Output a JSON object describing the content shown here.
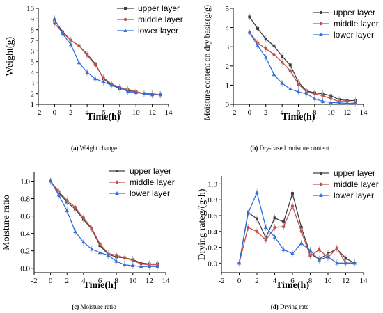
{
  "colors": {
    "upper": "#404040",
    "middle": "#c0504d",
    "lower": "#2f6fe0",
    "err": "#b4b4b4"
  },
  "chart_data": [
    {
      "type": "line",
      "caption_tag": "(a)",
      "caption_text": " Weight change",
      "xlabel": "Time(h)",
      "ylabel": "Weight(g)",
      "xlim": [
        -2,
        14
      ],
      "ylim": [
        1,
        10
      ],
      "xticks": [
        -2,
        0,
        2,
        4,
        6,
        8,
        10,
        12,
        14
      ],
      "yticks": [
        1,
        2,
        3,
        4,
        5,
        6,
        7,
        8,
        9,
        10
      ],
      "x": [
        0,
        1,
        2,
        3,
        4,
        5,
        6,
        7,
        8,
        9,
        10,
        11,
        12,
        13
      ],
      "legend": "top-right",
      "grid": false,
      "series": [
        {
          "name": "upper layer",
          "values": [
            8.9,
            7.8,
            7.0,
            6.5,
            5.7,
            4.8,
            3.4,
            2.8,
            2.5,
            2.3,
            2.2,
            2.0,
            1.9,
            1.9
          ]
        },
        {
          "name": "middle layer",
          "values": [
            8.6,
            7.7,
            7.0,
            6.5,
            5.6,
            4.7,
            3.5,
            2.9,
            2.6,
            2.4,
            2.2,
            2.0,
            2.0,
            1.9
          ]
        },
        {
          "name": "lower layer",
          "values": [
            9.0,
            7.6,
            6.6,
            4.9,
            4.0,
            3.4,
            3.1,
            2.8,
            2.6,
            2.2,
            2.1,
            2.0,
            1.9,
            1.9
          ]
        }
      ]
    },
    {
      "type": "line",
      "caption_tag": "(b)",
      "caption_text": " Dry-based moisture content",
      "xlabel": "Time(h)",
      "ylabel": "Moisture content on dry basis(g/g)",
      "xlim": [
        -2,
        14
      ],
      "ylim": [
        0,
        5
      ],
      "xticks": [
        -2,
        0,
        2,
        4,
        6,
        8,
        10,
        12,
        14
      ],
      "yticks": [
        0,
        1,
        2,
        3,
        4,
        5
      ],
      "x": [
        0,
        1,
        2,
        3,
        4,
        5,
        6,
        7,
        8,
        9,
        10,
        11,
        12,
        13
      ],
      "legend": "top-right",
      "grid": false,
      "series": [
        {
          "name": "upper layer",
          "values": [
            4.55,
            3.95,
            3.4,
            3.05,
            2.5,
            2.05,
            1.15,
            0.7,
            0.6,
            0.55,
            0.45,
            0.25,
            0.2,
            0.2
          ]
        },
        {
          "name": "middle layer",
          "values": [
            3.75,
            3.2,
            2.9,
            2.6,
            2.2,
            1.75,
            1.05,
            0.65,
            0.55,
            0.45,
            0.3,
            0.15,
            0.15,
            0.1
          ]
        },
        {
          "name": "lower layer",
          "values": [
            3.75,
            3.05,
            2.45,
            1.55,
            1.1,
            0.8,
            0.65,
            0.55,
            0.3,
            0.15,
            0.1,
            0.08,
            0.05,
            0.05
          ]
        }
      ]
    },
    {
      "type": "line",
      "caption_tag": "(c)",
      "caption_text": " Moisture ratio",
      "xlabel": "Time(h)",
      "ylabel": "Moisture ratio",
      "xlim": [
        -2,
        14
      ],
      "ylim": [
        -0.05,
        1.1
      ],
      "xticks": [
        -2,
        0,
        2,
        4,
        6,
        8,
        10,
        12,
        14
      ],
      "yticks": [
        0.0,
        0.2,
        0.4,
        0.6,
        0.8,
        1.0
      ],
      "x": [
        0,
        1,
        2,
        3,
        4,
        5,
        6,
        7,
        8,
        9,
        10,
        11,
        12,
        13
      ],
      "legend": "top-right",
      "grid": false,
      "series": [
        {
          "name": "upper layer",
          "values": [
            1.0,
            0.87,
            0.76,
            0.68,
            0.56,
            0.45,
            0.26,
            0.16,
            0.13,
            0.12,
            0.1,
            0.06,
            0.05,
            0.05
          ]
        },
        {
          "name": "middle layer",
          "values": [
            1.0,
            0.88,
            0.78,
            0.7,
            0.58,
            0.46,
            0.28,
            0.17,
            0.15,
            0.12,
            0.09,
            0.05,
            0.04,
            0.04
          ]
        },
        {
          "name": "lower layer",
          "values": [
            1.0,
            0.84,
            0.66,
            0.42,
            0.3,
            0.22,
            0.18,
            0.15,
            0.08,
            0.04,
            0.03,
            0.02,
            0.02,
            0.02
          ]
        }
      ]
    },
    {
      "type": "line",
      "caption_tag": "(d)",
      "caption_text": " Drying rate",
      "xlabel": "Time(h)",
      "ylabel": "Drying rateg/(g·h)",
      "xlim": [
        -2,
        14
      ],
      "ylim": [
        -0.12,
        1.1
      ],
      "xticks": [
        -2,
        0,
        2,
        4,
        6,
        8,
        10,
        12,
        14
      ],
      "yticks": [
        0.0,
        0.2,
        0.4,
        0.6,
        0.8,
        1.0
      ],
      "x": [
        0,
        1,
        2,
        3,
        4,
        5,
        6,
        7,
        8,
        9,
        10,
        11,
        12,
        13
      ],
      "legend": "top-right",
      "grid": false,
      "series": [
        {
          "name": "upper layer",
          "values": [
            0.0,
            0.64,
            0.56,
            0.32,
            0.57,
            0.52,
            0.88,
            0.45,
            0.12,
            0.05,
            0.12,
            0.18,
            0.06,
            0.0
          ]
        },
        {
          "name": "middle layer",
          "values": [
            0.0,
            0.45,
            0.4,
            0.29,
            0.45,
            0.46,
            0.72,
            0.4,
            0.09,
            0.17,
            0.07,
            0.19,
            0.0,
            0.0
          ]
        },
        {
          "name": "lower layer",
          "values": [
            0.0,
            0.63,
            0.89,
            0.45,
            0.33,
            0.17,
            0.12,
            0.25,
            0.16,
            0.04,
            0.08,
            0.0,
            0.0,
            0.0
          ]
        }
      ]
    }
  ]
}
